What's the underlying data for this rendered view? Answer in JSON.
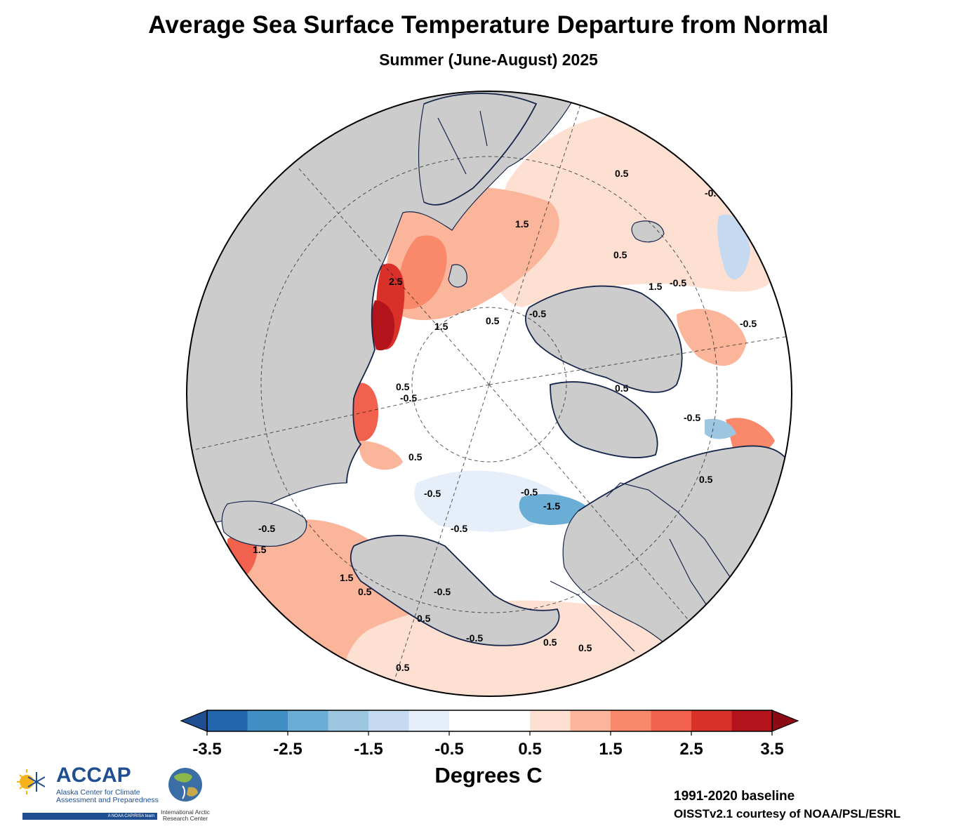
{
  "title": "Average Sea Surface Temperature Departure from Normal",
  "subtitle": "Summer (June-August) 2025",
  "map": {
    "contour_labels": [
      "-1.5",
      "-0.5",
      "0.5",
      "1.5",
      "2.5"
    ],
    "colors": {
      "land": "#cccccc",
      "coast": "#16254a",
      "warm_1": "#fde0d2",
      "warm_2": "#fbb59b",
      "warm_3": "#f9896a",
      "warm_4": "#f1614d",
      "warm_5": "#d9302a",
      "warm_6": "#b3141b",
      "cool_1": "#e6eefa",
      "cool_2": "#c5daf0",
      "cool_3": "#9dc6e0",
      "cool_4": "#6aaed6",
      "cool_5": "#3f8fc5",
      "cool_6": "#2166ac"
    }
  },
  "colorbar": {
    "unit": "Degrees C",
    "tick_labels": [
      "-3.5",
      "-2.5",
      "-1.5",
      "-0.5",
      "0.5",
      "1.5",
      "2.5",
      "3.5"
    ],
    "colors": [
      "#2166ac",
      "#3f8fc5",
      "#6aaed6",
      "#9dc6e0",
      "#c5daf0",
      "#e6eefa",
      "#ffffff",
      "#ffffff",
      "#fde0d2",
      "#fbb59b",
      "#f9896a",
      "#f1614d",
      "#d9302a",
      "#b3141b"
    ],
    "under_color": "#1f4f91",
    "over_color": "#8b0a14"
  },
  "credits": {
    "baseline": "1991-2020 baseline",
    "source": "OISSTv2.1 courtesy of NOAA/PSL/ESRL"
  },
  "logos": {
    "accap_name": "ACCAP",
    "accap_line1": "Alaska Center for Climate",
    "accap_line2": "Assessment and Preparedness",
    "accap_tag": "A NOAA CAP/RISA team",
    "iarc_line1": "International Arctic",
    "iarc_line2": "Research Center"
  }
}
